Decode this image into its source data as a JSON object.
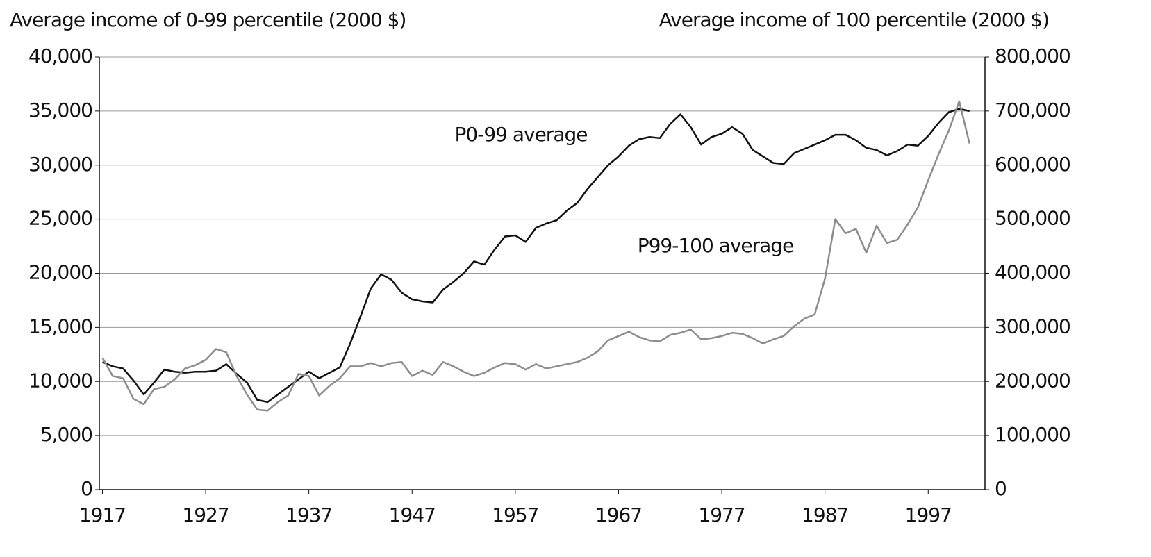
{
  "chart_data": {
    "type": "line",
    "y_label": "Average income of 0-99 percentile (2000 $)",
    "y2_label": "Average income of 100 percentile (2000 $)",
    "annotations": [
      "P0-99 average",
      "P99-100 average"
    ],
    "x": [
      1917,
      1918,
      1919,
      1920,
      1921,
      1922,
      1923,
      1924,
      1925,
      1926,
      1927,
      1928,
      1929,
      1930,
      1931,
      1932,
      1933,
      1934,
      1935,
      1936,
      1937,
      1938,
      1939,
      1940,
      1941,
      1942,
      1943,
      1944,
      1945,
      1946,
      1947,
      1948,
      1949,
      1950,
      1951,
      1952,
      1953,
      1954,
      1955,
      1956,
      1957,
      1958,
      1959,
      1960,
      1961,
      1962,
      1963,
      1964,
      1965,
      1966,
      1967,
      1968,
      1969,
      1970,
      1971,
      1972,
      1973,
      1974,
      1975,
      1976,
      1977,
      1978,
      1979,
      1980,
      1981,
      1982,
      1983,
      1984,
      1985,
      1986,
      1987,
      1988,
      1989,
      1990,
      1991,
      1992,
      1993,
      1994,
      1995,
      1996,
      1997,
      1998,
      1999,
      2000,
      2001
    ],
    "series": [
      {
        "name": "P0-99 average",
        "color": "#111111",
        "axis": "y",
        "values": [
          11800,
          11400,
          11200,
          10100,
          8800,
          9900,
          11100,
          10900,
          10800,
          10900,
          10900,
          11000,
          11600,
          10700,
          9900,
          8300,
          8100,
          8800,
          9500,
          10200,
          10900,
          10300,
          10800,
          11300,
          13500,
          16000,
          18600,
          19900,
          19400,
          18200,
          17600,
          17400,
          17300,
          18500,
          19200,
          20000,
          21100,
          20800,
          22200,
          23400,
          23500,
          22900,
          24200,
          24600,
          24900,
          25800,
          26500,
          27800,
          28900,
          30000,
          30800,
          31800,
          32400,
          32600,
          32500,
          33800,
          34700,
          33500,
          31900,
          32600,
          32900,
          33500,
          32900,
          31400,
          30800,
          30200,
          30100,
          31100,
          31500,
          31900,
          32300,
          32800,
          32800,
          32300,
          31600,
          31400,
          30900,
          31300,
          31900,
          31800,
          32700,
          33900,
          34900,
          35200,
          35000
        ]
      },
      {
        "name": "P99-100 average",
        "color": "#8c8c8c",
        "axis": "y2",
        "values": [
          244000,
          210000,
          206000,
          168000,
          158000,
          186000,
          190000,
          204000,
          224000,
          230000,
          240000,
          260000,
          254000,
          210000,
          176000,
          148000,
          146000,
          162000,
          174000,
          214000,
          210000,
          174000,
          192000,
          206000,
          228000,
          228000,
          234000,
          228000,
          234000,
          236000,
          210000,
          220000,
          212000,
          236000,
          228000,
          218000,
          210000,
          216000,
          226000,
          234000,
          232000,
          222000,
          232000,
          224000,
          228000,
          232000,
          236000,
          244000,
          256000,
          276000,
          284000,
          292000,
          282000,
          276000,
          274000,
          286000,
          290000,
          296000,
          278000,
          280000,
          284000,
          290000,
          288000,
          280000,
          270000,
          278000,
          284000,
          302000,
          316000,
          324000,
          390000,
          500000,
          474000,
          482000,
          438000,
          488000,
          456000,
          462000,
          490000,
          522000,
          572000,
          620000,
          664000,
          718000,
          640000
        ]
      }
    ],
    "xlim": [
      1916.7,
      2002.5
    ],
    "xticks": [
      1917,
      1927,
      1937,
      1947,
      1957,
      1967,
      1977,
      1987,
      1997
    ],
    "ylim": [
      0,
      40000
    ],
    "yticks": [
      0,
      {
        "value": 5000,
        "label": "5,000"
      },
      {
        "value": 10000,
        "label": "10,000"
      },
      {
        "value": 15000,
        "label": "15,000"
      },
      {
        "value": 20000,
        "label": "20,000"
      },
      {
        "value": 25000,
        "label": "25,000"
      },
      {
        "value": 30000,
        "label": "30,000"
      },
      {
        "value": 35000,
        "label": "35,000"
      },
      {
        "value": 40000,
        "label": "40,000"
      }
    ],
    "y2lim": [
      0,
      800000
    ],
    "y2ticks": [
      0,
      {
        "value": 100000,
        "label": "100,000"
      },
      {
        "value": 200000,
        "label": "200,000"
      },
      {
        "value": 300000,
        "label": "300,000"
      },
      {
        "value": 400000,
        "label": "400,000"
      },
      {
        "value": 500000,
        "label": "500,000"
      },
      {
        "value": 600000,
        "label": "600,000"
      },
      {
        "value": 700000,
        "label": "700,000"
      },
      {
        "value": 800000,
        "label": "800,000"
      }
    ],
    "grid": true
  }
}
